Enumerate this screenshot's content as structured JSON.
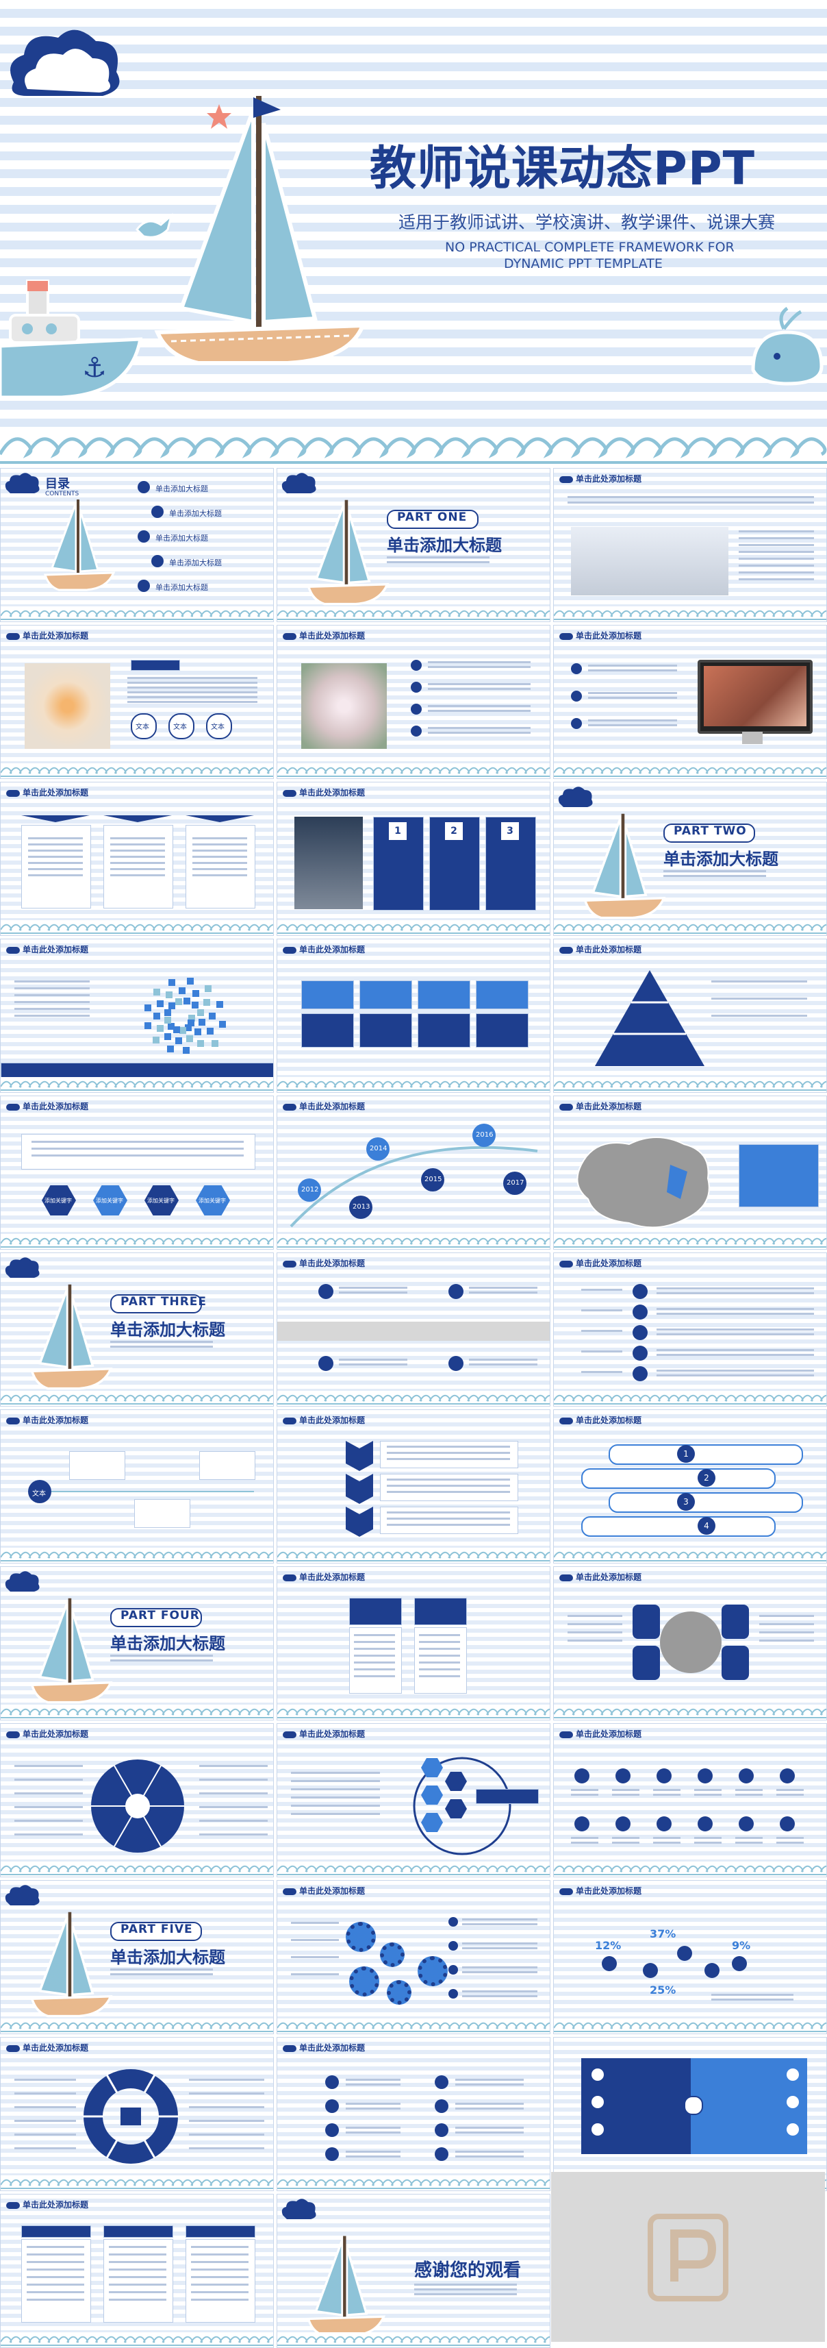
{
  "cover": {
    "title": "教师说课动态PPT",
    "subtitle": "适用于教师试讲、学校演讲、教学课件、说课大赛",
    "english_line1": "NO PRACTICAL COMPLETE FRAMEWORK FOR",
    "english_line2": "DYNAMIC PPT TEMPLATE"
  },
  "toc": {
    "title": "目录",
    "contents": "CONTENTS",
    "items": [
      "单击添加大标题",
      "单击添加大标题",
      "单击添加大标题",
      "单击添加大标题",
      "单击添加大标题"
    ]
  },
  "slide_header": "单击此处添加标题",
  "sections": [
    {
      "part": "PART ONE",
      "title": "单击添加大标题"
    },
    {
      "part": "PART TWO",
      "title": "单击添加大标题"
    },
    {
      "part": "PART THREE",
      "title": "单击添加大标题"
    },
    {
      "part": "PART FOUR",
      "title": "单击添加大标题"
    },
    {
      "part": "PART FIVE",
      "title": "单击添加大标题"
    }
  ],
  "steps": [
    "1",
    "2",
    "3",
    "4"
  ],
  "years": [
    "2012",
    "2013",
    "2014",
    "2015",
    "2016",
    "2017"
  ],
  "text_label": "文本",
  "keyword_label": "添加关键字",
  "percents": [
    "12%",
    "37%",
    "9%",
    "25%"
  ],
  "end_title": "感谢您的观看",
  "colors": {
    "navy": "#1e3e8e",
    "accent": "#3b7fd8",
    "stripe": "#dce8f7"
  }
}
